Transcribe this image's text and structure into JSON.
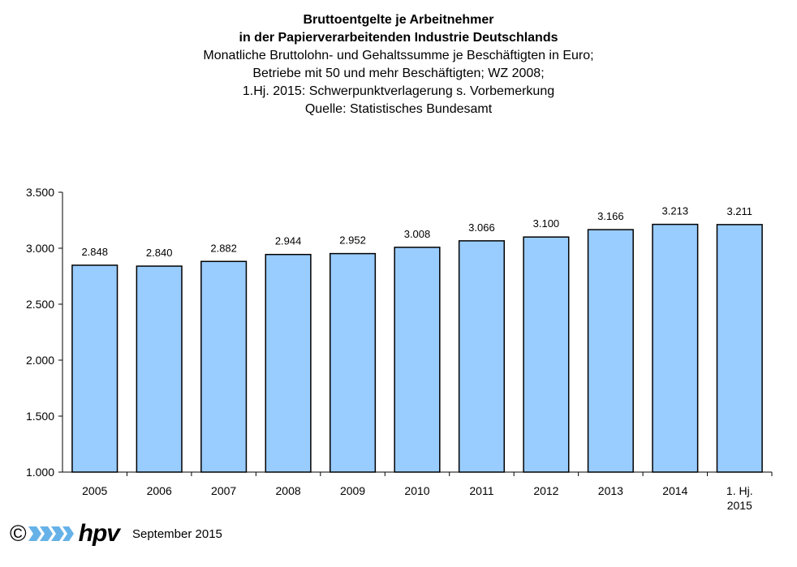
{
  "titles": {
    "line1": "Bruttoentgelte je Arbeitnehmer",
    "line2": "in der Papierverarbeitenden Industrie Deutschlands",
    "line3": "Monatliche Bruttolohn- und Gehaltssumme  je Beschäftigten  in Euro;",
    "line4": "Betriebe mit 50 und mehr Beschäftigten;  WZ 2008;",
    "line5": "1.Hj. 2015: Schwerpunktverlagerung  s. Vorbemerkung",
    "line6": "Quelle:  Statistisches  Bundesamt"
  },
  "chart_data": {
    "type": "bar",
    "categories": [
      "2005",
      "2006",
      "2007",
      "2008",
      "2009",
      "2010",
      "2011",
      "2012",
      "2013",
      "2014",
      "1. Hj.\n2015"
    ],
    "values": [
      2848,
      2840,
      2882,
      2944,
      2952,
      3008,
      3066,
      3100,
      3166,
      3213,
      3211
    ],
    "value_labels": [
      "2.848",
      "2.840",
      "2.882",
      "2.944",
      "2.952",
      "3.008",
      "3.066",
      "3.100",
      "3.166",
      "3.213",
      "3.211"
    ],
    "y_ticks": [
      1000,
      1500,
      2000,
      2500,
      3000,
      3500
    ],
    "y_tick_labels": [
      "1.000",
      "1.500",
      "2.000",
      "2.500",
      "3.000",
      "3.500"
    ],
    "ylim": [
      1000,
      3500
    ],
    "grid": false,
    "bar_color": "#99CCFF"
  },
  "footer": {
    "copyright": "©",
    "logo": "hpv",
    "date": "September 2015"
  },
  "colors": {
    "bar": "#99CCFF",
    "logo_arrow": "#66B2E8"
  }
}
